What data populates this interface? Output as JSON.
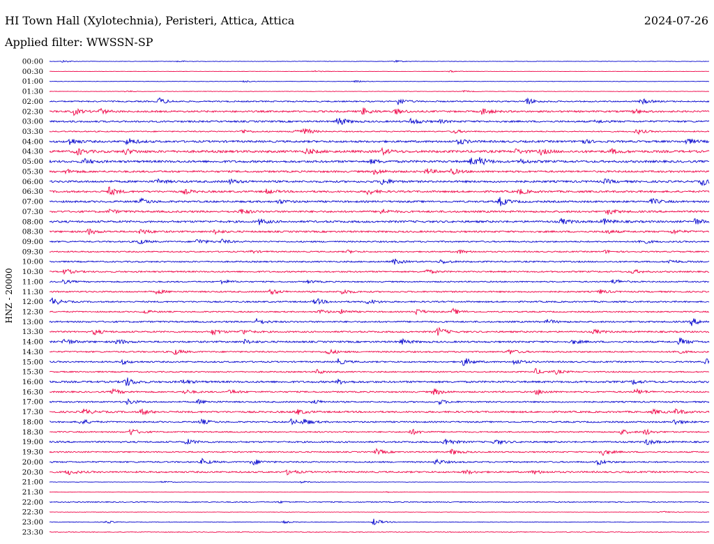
{
  "header": {
    "station": "HI Town Hall (Xylotechnia), Peristeri, Attica, Attica",
    "date": "2024-07-26",
    "filter": "Applied filter: WWSSN-SP"
  },
  "chart_data": {
    "type": "line",
    "title": "HI Town Hall (Xylotechnia), Peristeri, Attica, Attica",
    "ylabel": "HNZ - 20000",
    "row_labels": [
      "00:00",
      "00:30",
      "01:00",
      "01:30",
      "02:00",
      "02:30",
      "03:00",
      "03:30",
      "04:00",
      "04:30",
      "05:00",
      "05:30",
      "06:00",
      "06:30",
      "07:00",
      "07:30",
      "08:00",
      "08:30",
      "09:00",
      "09:30",
      "10:00",
      "10:30",
      "11:00",
      "11:30",
      "12:00",
      "12:30",
      "13:00",
      "13:30",
      "14:00",
      "14:30",
      "15:00",
      "15:30",
      "16:00",
      "16:30",
      "17:00",
      "17:30",
      "18:00",
      "18:30",
      "19:00",
      "19:30",
      "20:00",
      "20:30",
      "21:00",
      "21:30",
      "22:00",
      "22:30",
      "23:00",
      "23:30"
    ],
    "colors": [
      "#0000cc",
      "#ee0044"
    ],
    "noise_level": [
      0.3,
      0.2,
      0.3,
      0.3,
      0.9,
      1.2,
      1.2,
      0.8,
      1.4,
      1.6,
      1.5,
      1.3,
      1.4,
      1.3,
      1.3,
      1.3,
      1.4,
      1.2,
      1.0,
      0.9,
      1.0,
      1.0,
      0.9,
      1.0,
      1.0,
      0.9,
      1.1,
      1.1,
      1.2,
      1.0,
      1.0,
      0.9,
      1.3,
      1.0,
      1.0,
      1.2,
      1.0,
      0.9,
      1.1,
      0.9,
      1.0,
      1.1,
      0.3,
      0.3,
      0.7,
      0.3,
      0.4,
      0.5
    ],
    "events": [
      [
        [
          90,
          1.5
        ],
        [
          255,
          1.2
        ],
        [
          565,
          1.5
        ]
      ],
      [
        [
          450,
          1.5
        ],
        [
          645,
          1.2
        ]
      ],
      [
        [
          350,
          1.2
        ],
        [
          510,
          1.2
        ]
      ],
      [
        [
          180,
          1.2
        ],
        [
          665,
          1.2
        ]
      ],
      [
        [
          228,
          5
        ],
        [
          570,
          5
        ],
        [
          755,
          5
        ],
        [
          920,
          4
        ]
      ],
      [
        [
          105,
          5
        ],
        [
          143,
          4
        ],
        [
          520,
          5
        ],
        [
          568,
          4
        ],
        [
          692,
          5
        ],
        [
          910,
          3
        ]
      ],
      [
        [
          484,
          7
        ],
        [
          590,
          5
        ],
        [
          630,
          2
        ],
        [
          855,
          2
        ]
      ],
      [
        [
          347,
          3
        ],
        [
          422,
          4
        ],
        [
          437,
          4
        ],
        [
          650,
          3
        ],
        [
          913,
          4
        ]
      ],
      [
        [
          100,
          5
        ],
        [
          183,
          5
        ],
        [
          658,
          4
        ],
        [
          832,
          4
        ],
        [
          985,
          4
        ]
      ],
      [
        [
          110,
          5
        ],
        [
          180,
          4
        ],
        [
          440,
          4
        ],
        [
          548,
          4
        ],
        [
          740,
          3
        ],
        [
          775,
          4
        ],
        [
          877,
          3
        ]
      ],
      [
        [
          120,
          4
        ],
        [
          533,
          3
        ],
        [
          676,
          5
        ],
        [
          688,
          4
        ],
        [
          747,
          3
        ]
      ],
      [
        [
          95,
          3
        ],
        [
          537,
          4
        ],
        [
          612,
          4
        ],
        [
          648,
          4
        ]
      ],
      [
        [
          225,
          3
        ],
        [
          330,
          3
        ],
        [
          548,
          5
        ],
        [
          868,
          3
        ],
        [
          1007,
          5
        ]
      ],
      [
        [
          156,
          6
        ],
        [
          265,
          3
        ],
        [
          382,
          3
        ],
        [
          527,
          4
        ],
        [
          745,
          4
        ]
      ],
      [
        [
          203,
          4
        ],
        [
          400,
          3
        ],
        [
          717,
          6
        ],
        [
          935,
          4
        ]
      ],
      [
        [
          157,
          3
        ],
        [
          345,
          4
        ],
        [
          546,
          4
        ],
        [
          872,
          4
        ]
      ],
      [
        [
          372,
          4
        ],
        [
          805,
          4
        ],
        [
          865,
          4
        ],
        [
          995,
          5
        ]
      ],
      [
        [
          127,
          4
        ],
        [
          202,
          4
        ],
        [
          308,
          3
        ],
        [
          868,
          3
        ],
        [
          965,
          3
        ]
      ],
      [
        [
          198,
          4
        ],
        [
          283,
          4
        ],
        [
          318,
          3
        ],
        [
          918,
          4
        ]
      ],
      [
        [
          360,
          2
        ],
        [
          498,
          2
        ],
        [
          657,
          3
        ],
        [
          868,
          2
        ]
      ],
      [
        [
          565,
          4
        ],
        [
          632,
          3
        ],
        [
          960,
          3
        ]
      ],
      [
        [
          93,
          4
        ],
        [
          612,
          3
        ],
        [
          907,
          3
        ]
      ],
      [
        [
          90,
          3
        ],
        [
          318,
          3
        ],
        [
          442,
          2
        ],
        [
          880,
          4
        ]
      ],
      [
        [
          225,
          3
        ],
        [
          388,
          4
        ],
        [
          490,
          4
        ],
        [
          860,
          3
        ]
      ],
      [
        [
          74,
          6
        ],
        [
          452,
          5
        ],
        [
          528,
          4
        ]
      ],
      [
        [
          205,
          3
        ],
        [
          458,
          3
        ],
        [
          490,
          3
        ],
        [
          597,
          4
        ],
        [
          650,
          4
        ]
      ],
      [
        [
          368,
          4
        ],
        [
          785,
          3
        ],
        [
          992,
          5
        ]
      ],
      [
        [
          135,
          4
        ],
        [
          305,
          4
        ],
        [
          347,
          4
        ],
        [
          628,
          6
        ],
        [
          852,
          3
        ]
      ],
      [
        [
          92,
          5
        ],
        [
          168,
          4
        ],
        [
          350,
          3
        ],
        [
          575,
          4
        ],
        [
          820,
          3
        ],
        [
          975,
          5
        ]
      ],
      [
        [
          250,
          4
        ],
        [
          470,
          4
        ],
        [
          730,
          4
        ],
        [
          968,
          3
        ]
      ],
      [
        [
          175,
          3
        ],
        [
          485,
          4
        ],
        [
          665,
          6
        ],
        [
          738,
          4
        ],
        [
          1013,
          4
        ]
      ],
      [
        [
          455,
          3
        ],
        [
          768,
          4
        ],
        [
          797,
          3
        ]
      ],
      [
        [
          180,
          7
        ],
        [
          262,
          3
        ],
        [
          485,
          3
        ],
        [
          908,
          3
        ]
      ],
      [
        [
          162,
          4
        ],
        [
          265,
          3
        ],
        [
          330,
          3
        ],
        [
          622,
          5
        ],
        [
          770,
          4
        ],
        [
          912,
          4
        ]
      ],
      [
        [
          183,
          4
        ],
        [
          285,
          3
        ],
        [
          450,
          3
        ],
        [
          630,
          3
        ]
      ],
      [
        [
          120,
          4
        ],
        [
          203,
          4
        ],
        [
          425,
          4
        ],
        [
          937,
          3
        ],
        [
          970,
          4
        ]
      ],
      [
        [
          116,
          4
        ],
        [
          288,
          4
        ],
        [
          417,
          4
        ],
        [
          436,
          4
        ],
        [
          967,
          4
        ]
      ],
      [
        [
          187,
          5
        ],
        [
          590,
          4
        ],
        [
          890,
          4
        ],
        [
          925,
          4
        ]
      ],
      [
        [
          268,
          4
        ],
        [
          638,
          6
        ],
        [
          710,
          4
        ],
        [
          928,
          4
        ]
      ],
      [
        [
          540,
          4
        ],
        [
          648,
          4
        ],
        [
          863,
          5
        ]
      ],
      [
        [
          290,
          4
        ],
        [
          362,
          5
        ],
        [
          625,
          4
        ],
        [
          857,
          4
        ]
      ],
      [
        [
          97,
          4
        ],
        [
          413,
          4
        ],
        [
          667,
          3
        ],
        [
          765,
          3
        ]
      ],
      [
        [
          233,
          1.5
        ],
        [
          432,
          1.5
        ]
      ],
      [
        [
          550,
          1.2
        ]
      ],
      [
        [
          400,
          1.2
        ]
      ],
      [
        [
          950,
          1.2
        ]
      ],
      [
        [
          152,
          2
        ],
        [
          407,
          1.5
        ],
        [
          536,
          5
        ]
      ],
      []
    ]
  }
}
